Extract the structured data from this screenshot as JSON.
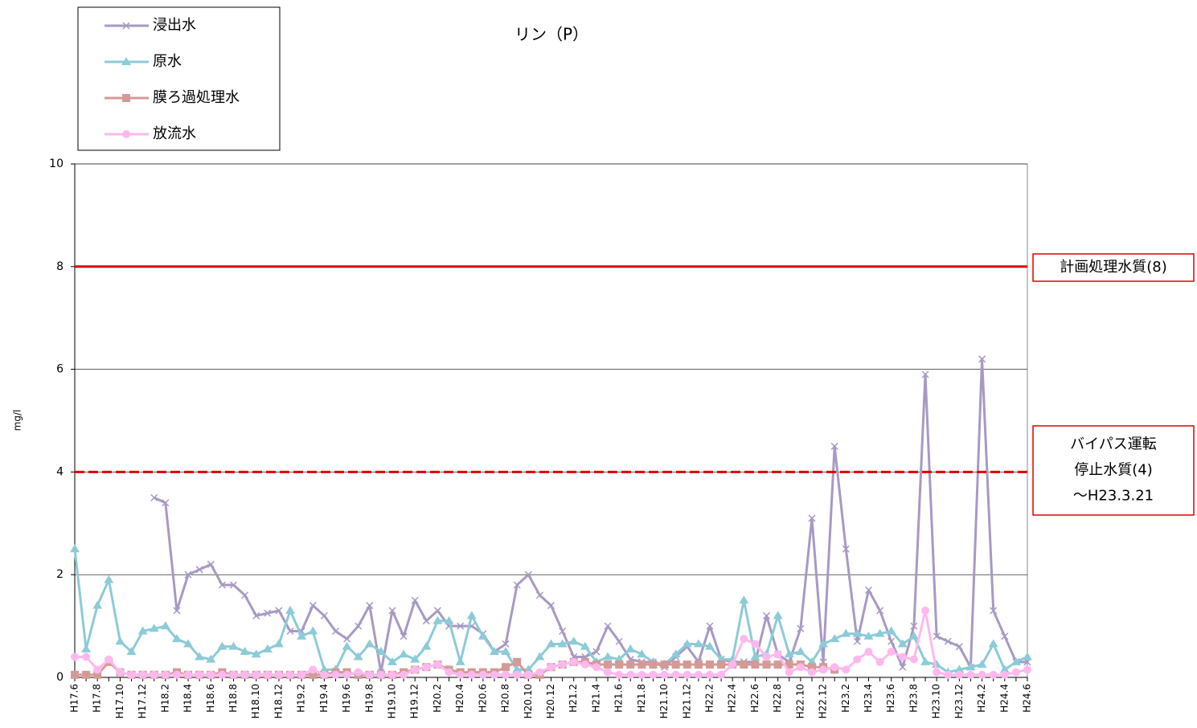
{
  "chart_data": {
    "type": "line",
    "title": "リン（P）",
    "y_label": "mg/l",
    "categories": [
      "H17.6",
      null,
      "H17.8",
      null,
      "H17.10",
      null,
      "H17.12",
      null,
      "H18.2",
      null,
      "H18.4",
      null,
      "H18.6",
      null,
      "H18.8",
      null,
      "H18.10",
      null,
      "H18.12",
      null,
      "H19.2",
      null,
      "H19.4",
      null,
      "H19.6",
      null,
      "H19.8",
      null,
      "H19.10",
      null,
      "H19.12",
      null,
      "H20.2",
      null,
      "H20.4",
      null,
      "H20.6",
      null,
      "H20.8",
      null,
      "H20.10",
      null,
      "H20.12",
      null,
      "H21.2",
      null,
      "H21.4",
      null,
      "H21.6",
      null,
      "H21.8",
      null,
      "H21.10",
      null,
      "H21.12",
      null,
      "H22.2",
      null,
      "H22.4",
      null,
      "H22.6",
      null,
      "H22.8",
      null,
      "H22.10",
      null,
      "H22.12",
      null,
      "H23.2",
      null,
      "H23.4",
      null,
      "H23.6",
      null,
      "H23.8",
      null,
      "H23.10",
      null,
      "H23.12",
      null,
      "H24.2",
      null,
      "H24.4",
      null,
      "H24.6"
    ],
    "series": [
      {
        "name": "浸出水",
        "color": "#a899c4",
        "marker": "x",
        "values": [
          null,
          null,
          null,
          null,
          null,
          null,
          null,
          3.5,
          3.4,
          1.3,
          2.0,
          2.1,
          2.2,
          1.8,
          1.8,
          1.6,
          1.2,
          1.25,
          1.3,
          0.9,
          0.9,
          1.4,
          1.2,
          0.9,
          0.75,
          1.0,
          1.4,
          0.1,
          1.3,
          0.8,
          1.5,
          1.1,
          1.3,
          1.0,
          1.0,
          1.0,
          0.85,
          0.5,
          0.65,
          1.8,
          2.0,
          1.6,
          1.4,
          0.9,
          0.4,
          0.4,
          0.5,
          1.0,
          0.7,
          0.35,
          0.3,
          0.3,
          0.2,
          0.4,
          0.6,
          0.3,
          1.0,
          0.35,
          0.3,
          0.3,
          0.3,
          1.2,
          0.45,
          0.3,
          0.95,
          3.1,
          0.3,
          4.5,
          2.5,
          0.7,
          1.7,
          1.3,
          0.7,
          0.2,
          1.0,
          5.9,
          0.8,
          0.7,
          0.6,
          0.2,
          6.2,
          1.3,
          0.8,
          0.3,
          0.3
        ]
      },
      {
        "name": "原水",
        "color": "#8ccbd8",
        "marker": "triangle",
        "values": [
          2.5,
          0.55,
          1.4,
          1.9,
          0.7,
          0.5,
          0.9,
          0.95,
          1.0,
          0.75,
          0.65,
          0.4,
          0.35,
          0.6,
          0.6,
          0.5,
          0.45,
          0.55,
          0.65,
          1.3,
          0.8,
          0.9,
          0.15,
          0.15,
          0.6,
          0.4,
          0.65,
          0.5,
          0.3,
          0.45,
          0.35,
          0.6,
          1.1,
          1.1,
          0.3,
          1.2,
          0.8,
          0.5,
          0.5,
          0.15,
          0.15,
          0.4,
          0.65,
          0.65,
          0.7,
          0.6,
          0.3,
          0.4,
          0.35,
          0.55,
          0.45,
          0.3,
          0.25,
          0.45,
          0.65,
          0.65,
          0.6,
          0.35,
          0.35,
          1.5,
          0.4,
          0.45,
          1.2,
          0.45,
          0.5,
          0.3,
          0.65,
          0.75,
          0.85,
          0.85,
          0.8,
          0.85,
          0.9,
          0.65,
          0.8,
          0.3,
          0.25,
          0.1,
          0.15,
          0.2,
          0.25,
          0.65,
          0.15,
          0.3,
          0.4
        ]
      },
      {
        "name": "膜ろ過処理水",
        "color": "#d49a96",
        "marker": "square",
        "values": [
          0.05,
          0.05,
          0.05,
          0.3,
          0.1,
          0.05,
          0.05,
          0.05,
          0.05,
          0.1,
          0.05,
          0.05,
          0.05,
          0.1,
          0.05,
          0.05,
          0.05,
          0.05,
          0.05,
          0.05,
          0.05,
          0.05,
          0.05,
          0.1,
          0.1,
          0.05,
          0.05,
          0.05,
          0.05,
          0.1,
          0.15,
          0.2,
          0.25,
          0.15,
          0.1,
          0.1,
          0.1,
          0.1,
          0.2,
          0.3,
          0.05,
          0.05,
          0.2,
          0.25,
          0.3,
          0.3,
          0.25,
          0.25,
          0.25,
          0.25,
          0.25,
          0.25,
          0.25,
          0.25,
          0.25,
          0.25,
          0.25,
          0.25,
          0.25,
          0.25,
          0.25,
          0.25,
          0.25,
          0.25,
          0.25,
          0.2,
          0.2,
          0.15,
          null,
          null,
          null,
          null,
          null,
          null,
          null,
          null,
          null,
          null,
          null,
          null,
          null,
          null,
          null,
          null,
          null
        ]
      },
      {
        "name": "放流水",
        "color": "#ffb8ee",
        "marker": "circle",
        "values": [
          0.4,
          0.4,
          0.15,
          0.35,
          0.1,
          0.05,
          0.05,
          0.05,
          0.05,
          0.05,
          0.05,
          0.05,
          0.05,
          0.05,
          0.05,
          0.05,
          0.05,
          0.05,
          0.05,
          0.05,
          0.05,
          0.15,
          0.05,
          0.05,
          0.05,
          0.1,
          0.05,
          0.05,
          0.05,
          0.05,
          0.15,
          0.2,
          0.25,
          0.1,
          0.05,
          0.05,
          0.05,
          0.05,
          0.05,
          0.05,
          0.05,
          0.1,
          0.2,
          0.25,
          0.3,
          0.25,
          0.2,
          0.1,
          0.05,
          0.05,
          0.05,
          0.05,
          0.05,
          0.05,
          0.05,
          0.05,
          0.05,
          0.05,
          0.25,
          0.75,
          0.65,
          0.4,
          0.45,
          0.1,
          0.2,
          0.1,
          0.15,
          0.2,
          0.15,
          0.35,
          0.5,
          0.3,
          0.5,
          0.4,
          0.35,
          1.3,
          0.1,
          0.05,
          0.05,
          0.05,
          0.05,
          0.05,
          0.05,
          0.1,
          0.15
        ]
      }
    ],
    "reference_lines": [
      {
        "value": 8,
        "color": "#e00000",
        "style": "solid",
        "label": [
          "計画処理水質(8)"
        ]
      },
      {
        "value": 4,
        "color": "#e00000",
        "style": "dashed",
        "label": [
          "バイパス運転",
          "停止水質(4)",
          "～H23.3.21"
        ]
      }
    ],
    "ylim": [
      0,
      10
    ],
    "yticks": [
      0,
      2,
      4,
      6,
      8,
      10
    ],
    "grid": true,
    "legend": "upper left"
  }
}
